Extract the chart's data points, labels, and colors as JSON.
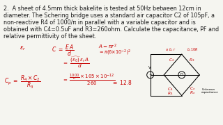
{
  "background_color": "#f5f5f0",
  "text_color": "#1a1a1a",
  "red_color": "#c80000",
  "problem_lines": [
    "2.  A sheet of 4.5mm thick bakelite is tested at 50Hz between 12cm in",
    "diameter. The Schering bridge uses a standard air capacitor C2 of 105pF, a",
    "non-reactive R4 of 1000/π in parallel with a variable capacitor and is",
    "obtained with C4=0.5uF and R3=260ohm. Calculate the capacitance, PF and",
    "relative permittivity of the sheet."
  ],
  "fig_width": 3.2,
  "fig_height": 1.8,
  "dpi": 100
}
